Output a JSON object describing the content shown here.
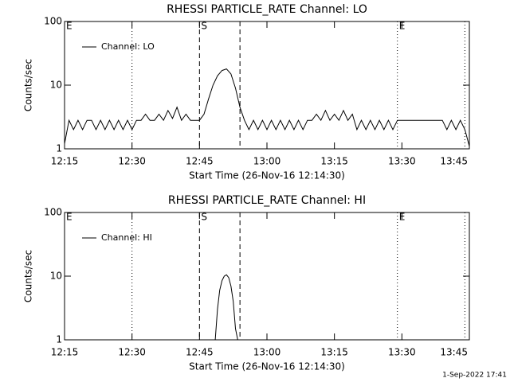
{
  "chart_data": [
    {
      "type": "line",
      "title": "RHESSI PARTICLE_RATE Channel: LO",
      "xlabel": "Start Time (26-Nov-16 12:14:30)",
      "ylabel": "Counts/sec",
      "log_y": true,
      "ylim": [
        1,
        100
      ],
      "yticks": [
        1,
        10,
        100
      ],
      "xlim": [
        "12:15",
        "13:45"
      ],
      "xticks": [
        "12:15",
        "12:30",
        "12:45",
        "13:00",
        "13:15",
        "13:30",
        "13:45"
      ],
      "legend": "upper left",
      "x": [
        "12:15",
        "12:16",
        "12:17",
        "12:18",
        "12:19",
        "12:20",
        "12:21",
        "12:22",
        "12:23",
        "12:24",
        "12:25",
        "12:26",
        "12:27",
        "12:28",
        "12:29",
        "12:30",
        "12:31",
        "12:32",
        "12:33",
        "12:34",
        "12:35",
        "12:36",
        "12:37",
        "12:38",
        "12:39",
        "12:40",
        "12:41",
        "12:42",
        "12:43",
        "12:44",
        "12:45",
        "12:46",
        "12:47",
        "12:48",
        "12:49",
        "12:50",
        "12:51",
        "12:52",
        "12:53",
        "12:54",
        "12:55",
        "12:56",
        "12:57",
        "12:58",
        "12:59",
        "13:00",
        "13:01",
        "13:02",
        "13:03",
        "13:04",
        "13:05",
        "13:06",
        "13:07",
        "13:08",
        "13:09",
        "13:10",
        "13:11",
        "13:12",
        "13:13",
        "13:14",
        "13:15",
        "13:16",
        "13:17",
        "13:18",
        "13:19",
        "13:20",
        "13:21",
        "13:22",
        "13:23",
        "13:24",
        "13:25",
        "13:26",
        "13:27",
        "13:28",
        "13:29",
        "13:30",
        "13:31",
        "13:32",
        "13:33",
        "13:34",
        "13:35",
        "13:36",
        "13:37",
        "13:38",
        "13:39",
        "13:40",
        "13:41",
        "13:42",
        "13:43",
        "13:44",
        "13:45"
      ],
      "series": [
        {
          "name": "Channel: LO",
          "color": "#000000",
          "values": [
            1.2,
            2.8,
            2,
            2.8,
            2,
            2.8,
            2.8,
            2,
            2.8,
            2,
            2.8,
            2,
            2.8,
            2,
            2.8,
            2,
            2.8,
            2.8,
            3.5,
            2.8,
            2.8,
            3.5,
            2.8,
            4,
            3,
            4.5,
            2.8,
            3.5,
            2.8,
            2.8,
            2.8,
            3.5,
            6,
            10,
            14,
            17,
            18,
            15,
            9,
            4.5,
            2.8,
            2,
            2.8,
            2,
            2.8,
            2,
            2.8,
            2,
            2.8,
            2,
            2.8,
            2,
            2.8,
            2,
            2.8,
            2.8,
            3.5,
            2.8,
            4,
            2.8,
            3.5,
            2.8,
            4,
            2.8,
            3.5,
            2,
            2.8,
            2,
            2.8,
            2,
            2.8,
            2,
            2.8,
            2,
            2.8,
            2.8,
            2.8,
            2.8,
            2.8,
            2.8,
            2.8,
            2.8,
            2.8,
            2.8,
            2.8,
            2,
            2.8,
            2,
            2.8,
            2,
            1.1
          ]
        }
      ],
      "vlines": [
        {
          "x": "12:15",
          "style": "none",
          "label": "E"
        },
        {
          "x": "12:30",
          "style": "dotted"
        },
        {
          "x": "12:45",
          "style": "dashed",
          "label": "S"
        },
        {
          "x": "12:54",
          "style": "dashed"
        },
        {
          "x": "13:29",
          "style": "dotted",
          "label": "E"
        },
        {
          "x": "13:44",
          "style": "dotted"
        }
      ]
    },
    {
      "type": "line",
      "title": "RHESSI PARTICLE_RATE Channel: HI",
      "xlabel": "Start Time (26-Nov-16 12:14:30)",
      "ylabel": "Counts/sec",
      "log_y": true,
      "ylim": [
        1,
        100
      ],
      "yticks": [
        1,
        10,
        100
      ],
      "xlim": [
        "12:15",
        "13:45"
      ],
      "xticks": [
        "12:15",
        "12:30",
        "12:45",
        "13:00",
        "13:15",
        "13:30",
        "13:45"
      ],
      "legend": "upper left",
      "x": [
        "12:48:30",
        "12:49:00",
        "12:49:30",
        "12:50:00",
        "12:50:30",
        "12:51:00",
        "12:51:30",
        "12:52:00",
        "12:52:30",
        "12:53:00",
        "12:53:30"
      ],
      "series": [
        {
          "name": "Channel: HI",
          "color": "#000000",
          "values": [
            1,
            3,
            6,
            8.5,
            10,
            10.5,
            9.5,
            7,
            4,
            1.5,
            1
          ]
        }
      ],
      "vlines": [
        {
          "x": "12:15",
          "style": "none",
          "label": "E"
        },
        {
          "x": "12:30",
          "style": "dotted"
        },
        {
          "x": "12:45",
          "style": "dashed",
          "label": "S"
        },
        {
          "x": "12:54",
          "style": "dashed"
        },
        {
          "x": "13:29",
          "style": "dotted",
          "label": "E"
        },
        {
          "x": "13:44",
          "style": "dotted"
        }
      ]
    }
  ],
  "footer": "1-Sep-2022 17:41"
}
